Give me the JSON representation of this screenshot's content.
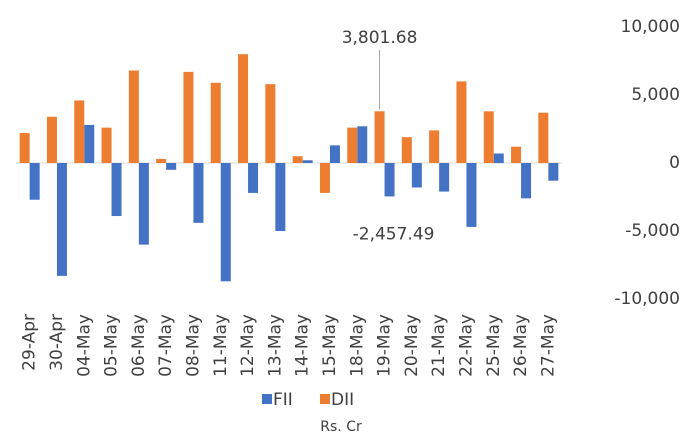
{
  "chart_data": {
    "type": "bar",
    "categories": [
      "29-Apr",
      "30-Apr",
      "04-May",
      "05-May",
      "06-May",
      "07-May",
      "08-May",
      "11-May",
      "12-May",
      "13-May",
      "14-May",
      "15-May",
      "18-May",
      "19-May",
      "20-May",
      "21-May",
      "22-May",
      "25-May",
      "26-May",
      "27-May"
    ],
    "series": [
      {
        "name": "FII",
        "color": "#4472c4",
        "values": [
          -2700,
          -8300,
          2800,
          -3900,
          -6000,
          -500,
          -4400,
          -8700,
          -2200,
          -5000,
          200,
          1300,
          2700,
          -2457.49,
          -1800,
          -2100,
          -4700,
          700,
          -2600,
          -1300
        ],
        "value_labels": [
          null,
          null,
          null,
          null,
          null,
          null,
          null,
          null,
          null,
          null,
          null,
          null,
          null,
          "-2,457.49",
          null,
          null,
          null,
          null,
          null,
          null
        ]
      },
      {
        "name": "DII",
        "color": "#ed7d31",
        "values": [
          2200,
          3400,
          4600,
          2600,
          6800,
          300,
          6700,
          5900,
          8000,
          5800,
          500,
          -2200,
          2600,
          3801.68,
          1900,
          2400,
          6000,
          3800,
          1200,
          3700
        ],
        "value_labels": [
          null,
          null,
          null,
          null,
          null,
          null,
          null,
          null,
          null,
          null,
          null,
          null,
          null,
          "3,801.68",
          null,
          null,
          null,
          null,
          null,
          null
        ]
      }
    ],
    "x_label": "Rs. Cr",
    "ylim": [
      -10000,
      10000
    ],
    "yticks": [
      {
        "value": 10000,
        "label": "10,000"
      },
      {
        "value": 5000,
        "label": "5,000"
      },
      0,
      {
        "value": -5000,
        "label": "-5,000"
      },
      {
        "value": -10000,
        "label": "-10,000"
      }
    ],
    "y_axis_side": "right",
    "grid": false,
    "legend": "bottom"
  }
}
